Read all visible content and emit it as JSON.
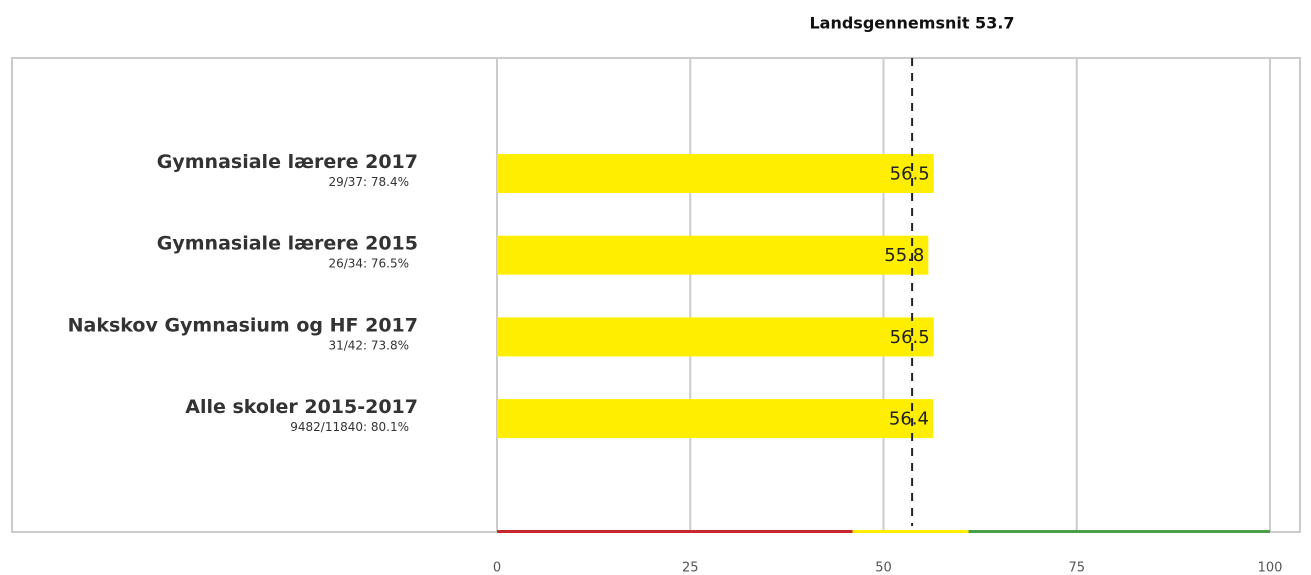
{
  "chart_data": {
    "type": "hbar",
    "annotation": "Landsgennemsnit 53.7",
    "reference_value": 53.7,
    "categories": [
      "Gymnasiale lærere 2017",
      "Gymnasiale lærere 2015",
      "Nakskov Gymnasium og HF 2017",
      "Alle skoler 2015-2017"
    ],
    "subtitles": [
      "29/37: 78.4%",
      "26/34: 76.5%",
      "31/42: 73.8%",
      "9482/11840: 80.1%"
    ],
    "values": [
      56.5,
      55.8,
      56.5,
      56.4
    ],
    "color": "#ffee00",
    "xlim": [
      0,
      100
    ],
    "xticks": [
      0,
      25,
      50,
      75,
      100
    ],
    "grid": true,
    "bands": [
      {
        "from": 0,
        "to": 46,
        "color": "#c8282d"
      },
      {
        "from": 46,
        "to": 61,
        "color": "#ffee00"
      },
      {
        "from": 61,
        "to": 100,
        "color": "#4a9e4a"
      }
    ]
  }
}
